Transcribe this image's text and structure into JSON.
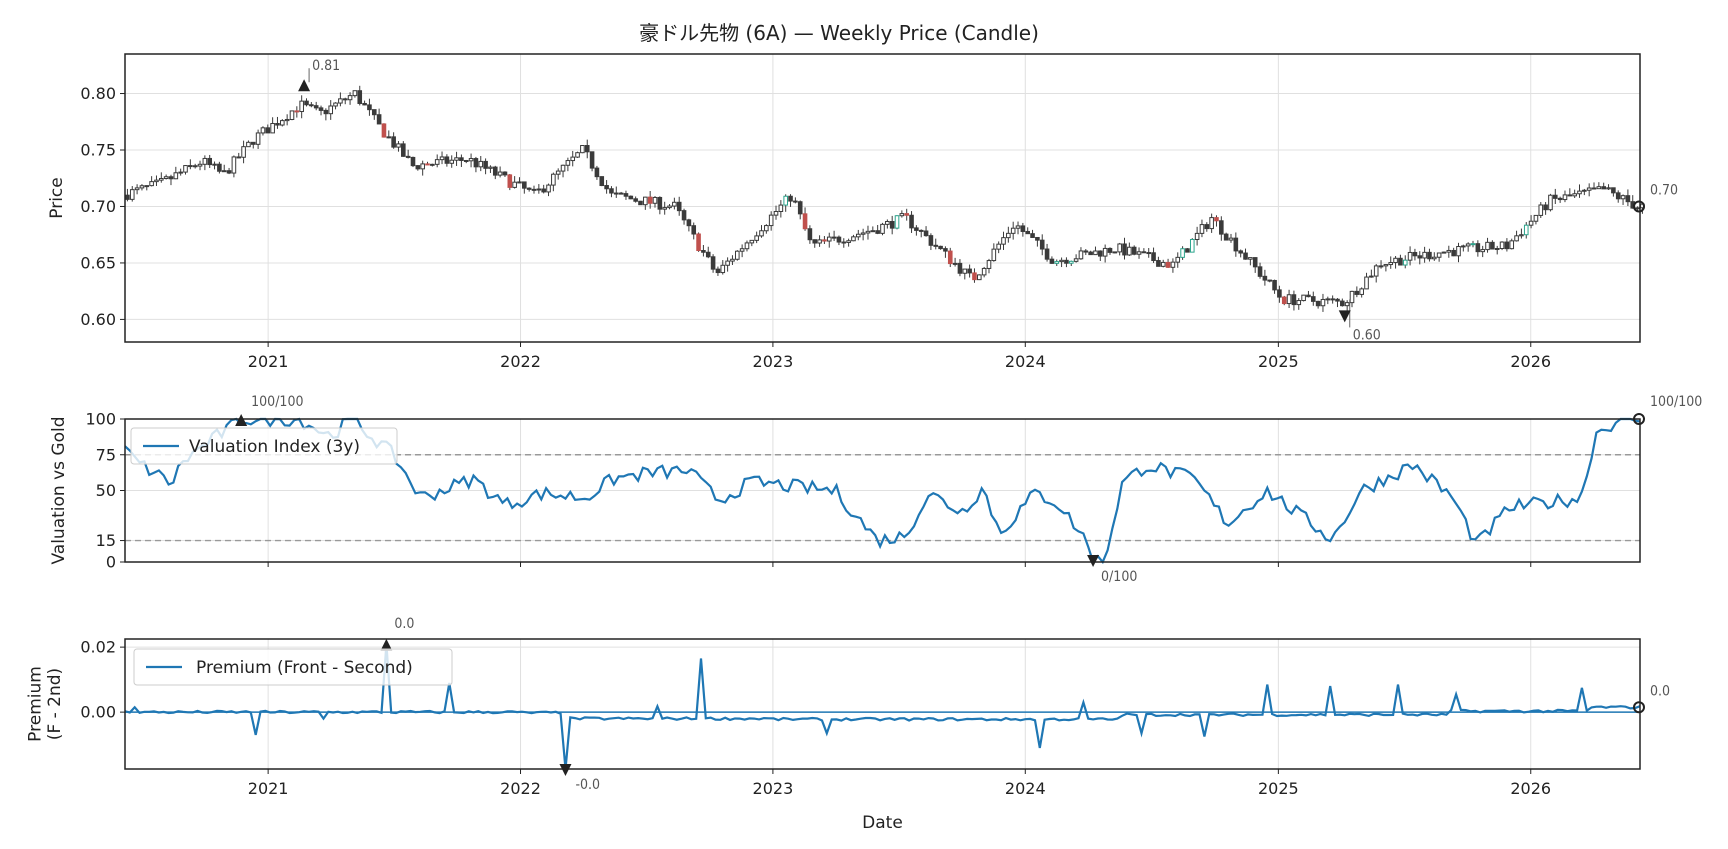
{
  "figure": {
    "title": "豪ドル先物 (6A) — Weekly Price (Candle)",
    "xlabel": "Date"
  },
  "colors": {
    "candle": "#3a3a3a",
    "line": "#1f77b4",
    "up_highlight": "#2ca58d",
    "down_highlight": "#c0504d",
    "grid": "#e0e0e0",
    "threshold": "#999999"
  },
  "chart_data": [
    {
      "type": "candlestick",
      "panel": "price",
      "title": "豪ドル先物 (6A) — Weekly Price (Candle)",
      "ylabel": "Price",
      "xlim": [
        "2020-06-08",
        "2026-06-08"
      ],
      "ylim": [
        0.58,
        0.835
      ],
      "yticks": [
        0.6,
        0.65,
        0.7,
        0.75,
        0.8
      ],
      "xticks": [
        "2021",
        "2022",
        "2023",
        "2024",
        "2025",
        "2026"
      ],
      "grid": true,
      "anchors": [
        [
          "2020-06-08",
          0.71
        ],
        [
          "2020-08-01",
          0.72
        ],
        [
          "2020-10-01",
          0.74
        ],
        [
          "2020-11-01",
          0.728
        ],
        [
          "2020-12-15",
          0.76
        ],
        [
          "2021-02-20",
          0.79
        ],
        [
          "2021-03-20",
          0.782
        ],
        [
          "2021-05-10",
          0.8
        ],
        [
          "2021-06-15",
          0.77
        ],
        [
          "2021-08-01",
          0.736
        ],
        [
          "2021-10-20",
          0.742
        ],
        [
          "2022-01-25",
          0.71
        ],
        [
          "2022-04-05",
          0.75
        ],
        [
          "2022-05-15",
          0.71
        ],
        [
          "2022-08-15",
          0.7
        ],
        [
          "2022-10-15",
          0.64
        ],
        [
          "2022-12-15",
          0.68
        ],
        [
          "2023-02-01",
          0.71
        ],
        [
          "2023-03-01",
          0.665
        ],
        [
          "2023-06-01",
          0.68
        ],
        [
          "2023-07-15",
          0.69
        ],
        [
          "2023-10-20",
          0.635
        ],
        [
          "2023-12-20",
          0.685
        ],
        [
          "2024-02-15",
          0.652
        ],
        [
          "2024-05-15",
          0.663
        ],
        [
          "2024-08-05",
          0.648
        ],
        [
          "2024-09-30",
          0.69
        ],
        [
          "2025-01-10",
          0.618
        ],
        [
          "2025-04-10",
          0.615
        ],
        [
          "2025-06-01",
          0.65
        ],
        [
          "2025-09-01",
          0.66
        ],
        [
          "2025-12-01",
          0.665
        ],
        [
          "2026-02-01",
          0.705
        ],
        [
          "2026-04-20",
          0.715
        ],
        [
          "2026-06-08",
          0.7
        ]
      ],
      "annotations": [
        {
          "date": "2021-02-22",
          "value": 0.81,
          "label": "0.81",
          "kind": "max"
        },
        {
          "date": "2025-04-07",
          "value": 0.6,
          "label": "0.60",
          "kind": "min"
        },
        {
          "date": "2026-06-08",
          "value": 0.7,
          "label": "0.70",
          "kind": "last"
        }
      ]
    },
    {
      "type": "line",
      "panel": "valuation",
      "ylabel": "Valuation vs Gold",
      "ylim": [
        0,
        100
      ],
      "yticks": [
        0,
        15,
        50,
        75,
        100
      ],
      "thresholds": [
        75,
        15
      ],
      "grid": true,
      "legend": "top-left",
      "series": [
        {
          "name": "Valuation Index (3y)",
          "anchors": [
            [
              "2020-06-08",
              78
            ],
            [
              "2020-07-01",
              68
            ],
            [
              "2020-08-15",
              55
            ],
            [
              "2020-08-30",
              70
            ],
            [
              "2020-10-10",
              85
            ],
            [
              "2020-11-25",
              100
            ],
            [
              "2021-02-15",
              100
            ],
            [
              "2021-04-01",
              88
            ],
            [
              "2021-05-01",
              100
            ],
            [
              "2021-07-01",
              75
            ],
            [
              "2021-08-10",
              45
            ],
            [
              "2021-09-20",
              52
            ],
            [
              "2021-10-25",
              58
            ],
            [
              "2021-12-10",
              40
            ],
            [
              "2022-02-01",
              48
            ],
            [
              "2022-04-05",
              45
            ],
            [
              "2022-05-15",
              58
            ],
            [
              "2022-07-01",
              62
            ],
            [
              "2022-09-01",
              64
            ],
            [
              "2022-10-15",
              43
            ],
            [
              "2022-12-01",
              56
            ],
            [
              "2023-02-15",
              52
            ],
            [
              "2023-04-01",
              50
            ],
            [
              "2023-06-01",
              15
            ],
            [
              "2023-07-10",
              18
            ],
            [
              "2023-08-15",
              48
            ],
            [
              "2023-10-01",
              35
            ],
            [
              "2023-11-01",
              52
            ],
            [
              "2023-11-25",
              20
            ],
            [
              "2024-01-15",
              48
            ],
            [
              "2024-02-15",
              42
            ],
            [
              "2024-03-25",
              18
            ],
            [
              "2024-04-10",
              0
            ],
            [
              "2024-04-25",
              2
            ],
            [
              "2024-05-20",
              55
            ],
            [
              "2024-06-25",
              68
            ],
            [
              "2024-09-01",
              58
            ],
            [
              "2024-10-20",
              27
            ],
            [
              "2024-12-15",
              50
            ],
            [
              "2025-03-20",
              16
            ],
            [
              "2025-05-01",
              50
            ],
            [
              "2025-07-15",
              68
            ],
            [
              "2025-09-10",
              45
            ],
            [
              "2025-10-15",
              12
            ],
            [
              "2025-12-01",
              38
            ],
            [
              "2026-02-01",
              42
            ],
            [
              "2026-03-15",
              45
            ],
            [
              "2026-04-05",
              90
            ],
            [
              "2026-05-10",
              100
            ],
            [
              "2026-06-08",
              100
            ]
          ]
        }
      ],
      "annotations": [
        {
          "date": "2020-11-23",
          "value": 100,
          "label": "100/100",
          "kind": "max"
        },
        {
          "date": "2024-04-08",
          "value": 0,
          "label": "0/100",
          "kind": "min"
        },
        {
          "date": "2026-06-08",
          "value": 100,
          "label": "100/100",
          "kind": "last"
        }
      ]
    },
    {
      "type": "line",
      "panel": "premium",
      "ylabel": "Premium\n(F - 2nd)",
      "ylim": [
        -0.0175,
        0.0225
      ],
      "yticks": [
        0.0,
        0.02
      ],
      "ytick_labels": [
        "0.00",
        "0.02"
      ],
      "xticks": [
        "2021",
        "2022",
        "2023",
        "2024",
        "2025",
        "2026"
      ],
      "grid": true,
      "legend": "top-left",
      "series": [
        {
          "name": "Premium (Front - Second)",
          "baseline": 0.0,
          "segments": [
            [
              "2020-06-08",
              "2021-12-31",
              0.0
            ],
            [
              "2022-01-01",
              "2022-03-10",
              -0.0002
            ],
            [
              "2022-03-10",
              "2023-01-01",
              -0.002
            ],
            [
              "2023-01-01",
              "2024-05-15",
              -0.0022
            ],
            [
              "2024-05-15",
              "2025-09-01",
              -0.0008
            ],
            [
              "2025-09-01",
              "2026-03-25",
              0.0003
            ],
            [
              "2026-03-25",
              "2026-06-08",
              0.0015
            ]
          ],
          "spikes": [
            [
              "2020-06-22",
              0.0015
            ],
            [
              "2020-12-14",
              -0.007
            ],
            [
              "2021-03-22",
              -0.002
            ],
            [
              "2021-06-21",
              0.021
            ],
            [
              "2021-09-20",
              0.009
            ],
            [
              "2022-03-07",
              -0.0175
            ],
            [
              "2022-07-18",
              0.0018
            ],
            [
              "2022-09-19",
              0.0165
            ],
            [
              "2023-03-20",
              -0.0065
            ],
            [
              "2024-01-22",
              -0.011
            ],
            [
              "2024-03-25",
              0.003
            ],
            [
              "2024-06-17",
              -0.0065
            ],
            [
              "2024-09-16",
              -0.0075
            ],
            [
              "2024-12-16",
              0.0085
            ],
            [
              "2025-03-17",
              0.008
            ],
            [
              "2025-06-23",
              0.0085
            ],
            [
              "2025-09-15",
              0.0055
            ],
            [
              "2026-03-16",
              0.0075
            ]
          ]
        }
      ],
      "annotations": [
        {
          "date": "2021-06-21",
          "value": 0.021,
          "label": "0.0",
          "kind": "max"
        },
        {
          "date": "2022-03-07",
          "value": -0.0175,
          "label": "-0.0",
          "kind": "min"
        },
        {
          "date": "2026-06-08",
          "value": 0.0015,
          "label": "0.0",
          "kind": "last"
        }
      ]
    }
  ]
}
